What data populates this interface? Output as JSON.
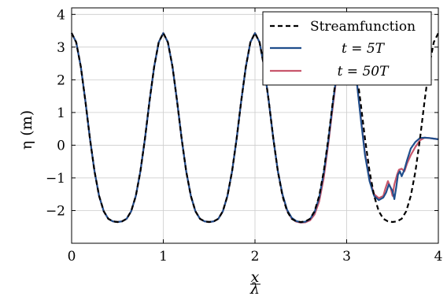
{
  "chart_data": {
    "type": "line",
    "xlabel": {
      "num": "x",
      "den": "λ"
    },
    "ylabel": "η (m)",
    "xlim": [
      0,
      4
    ],
    "ylim": [
      -3,
      4.2
    ],
    "xticks": [
      "0",
      "1",
      "2",
      "3",
      "4"
    ],
    "yticks": [
      "−2",
      "−1",
      "0",
      "1",
      "2",
      "3",
      "4"
    ],
    "grid": true,
    "legend_position": "top-right",
    "series": [
      {
        "name": "Streamfunction",
        "color": "#000000",
        "dash": true,
        "x": [
          0,
          0.05,
          0.1,
          0.15,
          0.2,
          0.25,
          0.3,
          0.35,
          0.4,
          0.45,
          0.5,
          0.55,
          0.6,
          0.65,
          0.7,
          0.75,
          0.8,
          0.85,
          0.9,
          0.95,
          1.0,
          1.05,
          1.1,
          1.15,
          1.2,
          1.25,
          1.3,
          1.35,
          1.4,
          1.45,
          1.5,
          1.55,
          1.6,
          1.65,
          1.7,
          1.75,
          1.8,
          1.85,
          1.9,
          1.95,
          2.0,
          2.05,
          2.1,
          2.15,
          2.2,
          2.25,
          2.3,
          2.35,
          2.4,
          2.45,
          2.5,
          2.55,
          2.6,
          2.65,
          2.7,
          2.75,
          2.8,
          2.85,
          2.9,
          2.95,
          3.0,
          3.05,
          3.1,
          3.15,
          3.2,
          3.25,
          3.3,
          3.35,
          3.4,
          3.45,
          3.5,
          3.55,
          3.6,
          3.65,
          3.7,
          3.75,
          3.8,
          3.85,
          3.9,
          3.95,
          4.0
        ],
        "y": [
          3.43,
          3.15,
          2.4,
          1.35,
          0.2,
          -0.8,
          -1.55,
          -2.02,
          -2.25,
          -2.33,
          -2.35,
          -2.33,
          -2.25,
          -2.02,
          -1.55,
          -0.8,
          0.2,
          1.35,
          2.4,
          3.15,
          3.43,
          3.15,
          2.4,
          1.35,
          0.2,
          -0.8,
          -1.55,
          -2.02,
          -2.25,
          -2.33,
          -2.35,
          -2.33,
          -2.25,
          -2.02,
          -1.55,
          -0.8,
          0.2,
          1.35,
          2.4,
          3.15,
          3.43,
          3.15,
          2.4,
          1.35,
          0.2,
          -0.8,
          -1.55,
          -2.02,
          -2.25,
          -2.33,
          -2.35,
          -2.33,
          -2.25,
          -2.02,
          -1.55,
          -0.8,
          0.2,
          1.35,
          2.4,
          3.15,
          3.43,
          3.15,
          2.4,
          1.35,
          0.2,
          -0.8,
          -1.55,
          -2.02,
          -2.25,
          -2.33,
          -2.35,
          -2.33,
          -2.25,
          -2.02,
          -1.55,
          -0.8,
          0.2,
          1.35,
          2.4,
          3.15,
          3.43
        ]
      },
      {
        "name": "t = 5T",
        "color": "#1f4e8c",
        "dash": false,
        "x": [
          0,
          0.05,
          0.1,
          0.15,
          0.2,
          0.25,
          0.3,
          0.35,
          0.4,
          0.45,
          0.5,
          0.55,
          0.6,
          0.65,
          0.7,
          0.75,
          0.8,
          0.85,
          0.9,
          0.95,
          1.0,
          1.05,
          1.1,
          1.15,
          1.2,
          1.25,
          1.3,
          1.35,
          1.4,
          1.45,
          1.5,
          1.55,
          1.6,
          1.65,
          1.7,
          1.75,
          1.8,
          1.85,
          1.9,
          1.95,
          2.0,
          2.05,
          2.1,
          2.15,
          2.2,
          2.25,
          2.3,
          2.35,
          2.4,
          2.45,
          2.5,
          2.55,
          2.6,
          2.65,
          2.7,
          2.75,
          2.8,
          2.85,
          2.9,
          2.95,
          3.0,
          3.05,
          3.1,
          3.15,
          3.2,
          3.25,
          3.3,
          3.35,
          3.4,
          3.43,
          3.46,
          3.5,
          3.52,
          3.54,
          3.56,
          3.58,
          3.6,
          3.63,
          3.66,
          3.7,
          3.75,
          3.8,
          3.85,
          3.9,
          3.95,
          4.0
        ],
        "y": [
          3.43,
          3.15,
          2.4,
          1.35,
          0.2,
          -0.8,
          -1.55,
          -2.02,
          -2.25,
          -2.33,
          -2.35,
          -2.33,
          -2.25,
          -2.02,
          -1.55,
          -0.8,
          0.2,
          1.35,
          2.4,
          3.15,
          3.43,
          3.15,
          2.4,
          1.35,
          0.2,
          -0.8,
          -1.55,
          -2.02,
          -2.25,
          -2.33,
          -2.35,
          -2.33,
          -2.25,
          -2.02,
          -1.55,
          -0.8,
          0.2,
          1.35,
          2.4,
          3.15,
          3.43,
          3.15,
          2.4,
          1.35,
          0.2,
          -0.8,
          -1.5,
          -1.98,
          -2.22,
          -2.32,
          -2.36,
          -2.34,
          -2.26,
          -2.05,
          -1.6,
          -0.85,
          0.15,
          1.3,
          2.35,
          3.1,
          3.4,
          3.1,
          2.2,
          0.9,
          -0.3,
          -1.1,
          -1.55,
          -1.68,
          -1.6,
          -1.45,
          -1.2,
          -1.4,
          -1.65,
          -1.3,
          -0.9,
          -0.8,
          -0.95,
          -0.75,
          -0.45,
          -0.1,
          0.1,
          0.22,
          0.23,
          0.22,
          0.2,
          0.18
        ]
      },
      {
        "name": "t = 50T",
        "color": "#c8566b",
        "dash": false,
        "x": [
          0,
          0.05,
          0.1,
          0.15,
          0.2,
          0.25,
          0.3,
          0.35,
          0.4,
          0.45,
          0.5,
          0.55,
          0.6,
          0.65,
          0.7,
          0.75,
          0.8,
          0.85,
          0.9,
          0.95,
          1.0,
          1.05,
          1.1,
          1.15,
          1.2,
          1.25,
          1.3,
          1.35,
          1.4,
          1.45,
          1.5,
          1.55,
          1.6,
          1.65,
          1.7,
          1.75,
          1.8,
          1.85,
          1.9,
          1.95,
          2.0,
          2.05,
          2.1,
          2.15,
          2.2,
          2.25,
          2.3,
          2.35,
          2.4,
          2.45,
          2.5,
          2.55,
          2.6,
          2.65,
          2.7,
          2.75,
          2.8,
          2.85,
          2.9,
          2.95,
          3.0,
          3.05,
          3.1,
          3.15,
          3.2,
          3.25,
          3.3,
          3.35,
          3.4,
          3.42,
          3.45,
          3.48,
          3.5,
          3.52,
          3.55,
          3.57,
          3.6,
          3.63,
          3.66,
          3.7,
          3.75,
          3.8,
          3.85,
          3.9,
          3.95,
          4.0
        ],
        "y": [
          3.43,
          3.15,
          2.4,
          1.35,
          0.2,
          -0.8,
          -1.55,
          -2.02,
          -2.25,
          -2.33,
          -2.35,
          -2.33,
          -2.25,
          -2.02,
          -1.55,
          -0.8,
          0.2,
          1.35,
          2.4,
          3.15,
          3.43,
          3.15,
          2.4,
          1.35,
          0.2,
          -0.8,
          -1.55,
          -2.02,
          -2.25,
          -2.33,
          -2.35,
          -2.33,
          -2.25,
          -2.02,
          -1.55,
          -0.8,
          0.2,
          1.35,
          2.4,
          3.15,
          3.43,
          3.15,
          2.4,
          1.35,
          0.2,
          -0.8,
          -1.52,
          -2.0,
          -2.24,
          -2.34,
          -2.37,
          -2.36,
          -2.3,
          -2.12,
          -1.72,
          -1.0,
          0.05,
          1.2,
          2.3,
          3.05,
          3.38,
          3.1,
          2.2,
          0.95,
          -0.25,
          -1.05,
          -1.5,
          -1.62,
          -1.55,
          -1.35,
          -1.1,
          -1.3,
          -1.55,
          -1.2,
          -0.9,
          -0.75,
          -0.72,
          -0.8,
          -0.55,
          -0.3,
          -0.05,
          0.15,
          0.23,
          0.22,
          0.2,
          0.18
        ]
      }
    ]
  }
}
